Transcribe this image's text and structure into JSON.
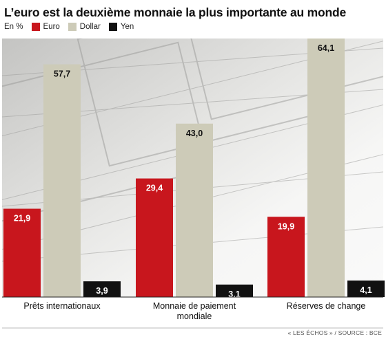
{
  "chart_data": {
    "type": "bar",
    "title": "L’euro est la deuxième monnaie la plus importante au monde",
    "unit_label": "En %",
    "categories": [
      [
        "Prêts internationaux"
      ],
      [
        "Monnaie de paiement",
        "mondiale"
      ],
      [
        "Réserves de change"
      ]
    ],
    "series": [
      {
        "name": "Euro",
        "color": "#c8161d",
        "values": [
          21.9,
          29.4,
          19.9
        ],
        "labels": [
          "21,9",
          "29,4",
          "19,9"
        ]
      },
      {
        "name": "Dollar",
        "color": "#cdcbb8",
        "values": [
          57.7,
          43.0,
          64.1
        ],
        "labels": [
          "57,7",
          "43,0",
          "64,1"
        ]
      },
      {
        "name": "Yen",
        "color": "#111111",
        "values": [
          3.9,
          3.1,
          4.1
        ],
        "labels": [
          "3,9",
          "3,1",
          "4,1"
        ]
      }
    ],
    "ylim": [
      0,
      64.1
    ],
    "grid": false,
    "legend_position": "top-left",
    "source": "« LES ÉCHOS » / SOURCE : BCE"
  }
}
